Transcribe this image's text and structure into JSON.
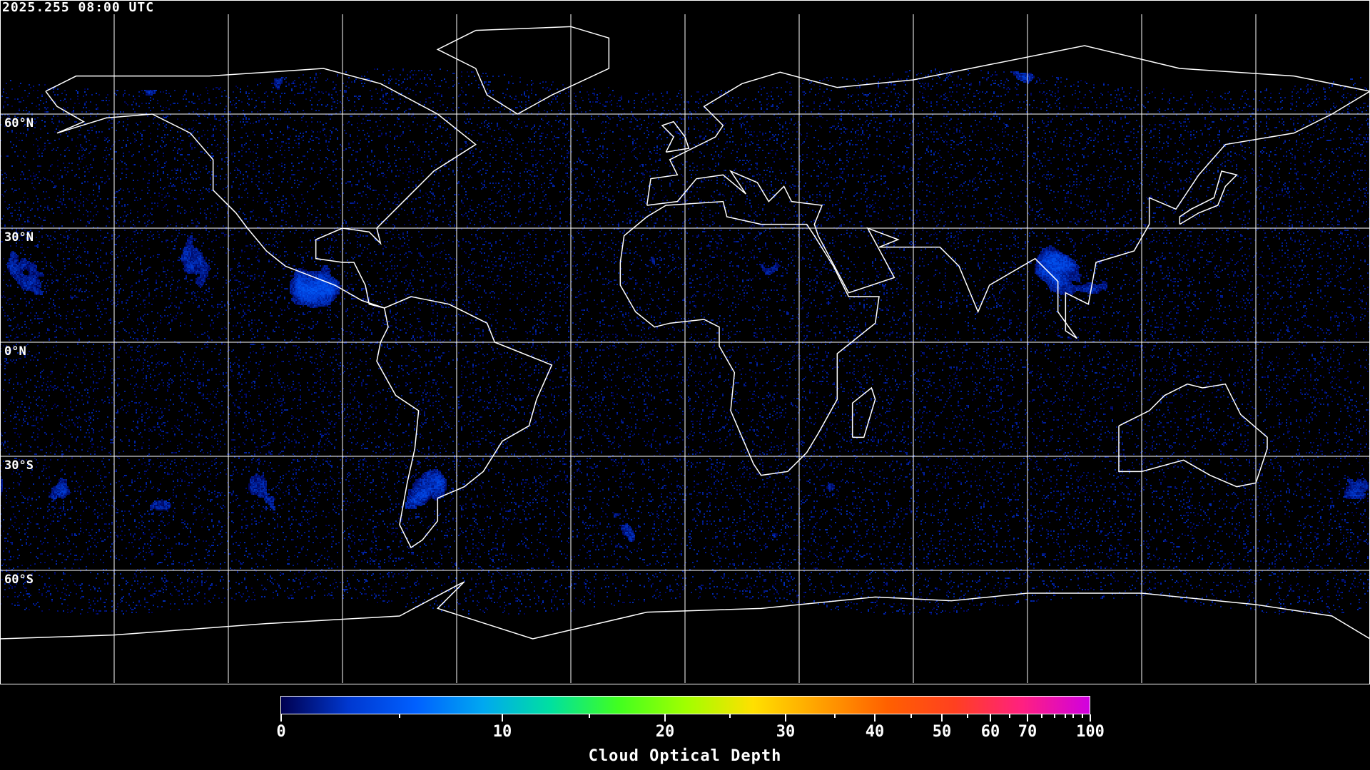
{
  "timestamp": "2025.255 08:00 UTC",
  "map": {
    "projection": "equirectangular",
    "grid_interval_deg": 30,
    "lat_labels": [
      "60°N",
      "30°N",
      "0°N",
      "30°S",
      "60°S"
    ],
    "coastline_color": "#ffffff",
    "background_color": "#000000"
  },
  "colorbar": {
    "title": "Cloud Optical Depth",
    "range": [
      0,
      100
    ],
    "tick_labels": [
      "0",
      "10",
      "20",
      "30",
      "40",
      "50",
      "60",
      "70",
      "100"
    ],
    "colors": [
      "#000050",
      "#0038d0",
      "#0060ff",
      "#00a8f0",
      "#00e0a0",
      "#40ff20",
      "#a0ff00",
      "#ffe000",
      "#ffa000",
      "#ff6000",
      "#ff4020",
      "#ff2080",
      "#d000e0"
    ]
  }
}
